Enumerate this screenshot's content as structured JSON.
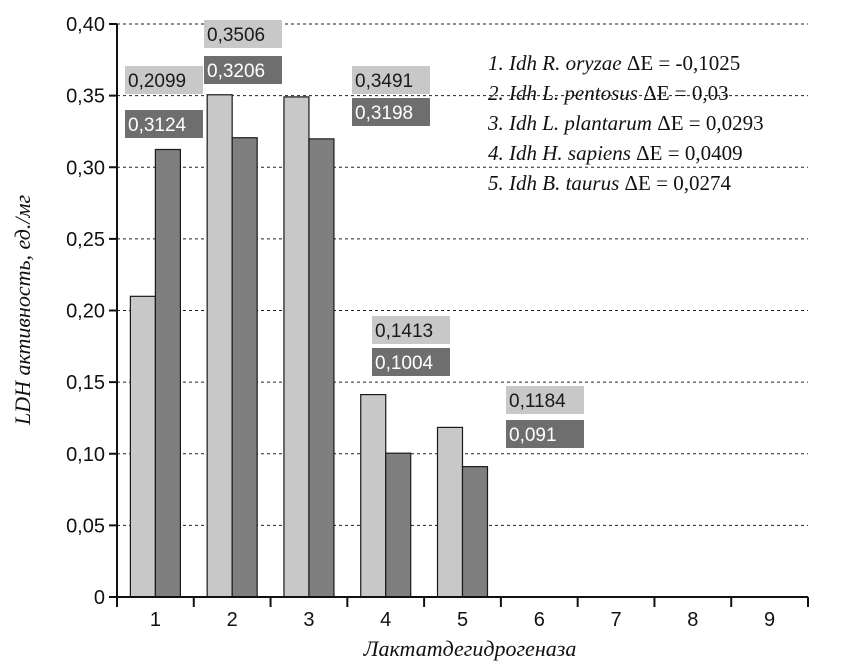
{
  "chart_data": {
    "type": "bar",
    "title": "",
    "xlabel": "Лактатдегидрогеназа",
    "ylabel": "LDH активность, ед./мг",
    "categories": [
      "1",
      "2",
      "3",
      "4",
      "5",
      "6",
      "7",
      "8",
      "9"
    ],
    "ylim": [
      0,
      0.4
    ],
    "yticks": [
      0,
      0.05,
      0.1,
      0.15,
      0.2,
      0.25,
      0.3,
      0.35,
      0.4
    ],
    "ytick_labels": [
      "0",
      "0,05",
      "0,10",
      "0,15",
      "0,20",
      "0,25",
      "0,30",
      "0,35",
      "0,40"
    ],
    "grid": "horizontal-dashed",
    "series": [
      {
        "values": [
          0.2099,
          0.3506,
          0.3491,
          0.1413,
          0.1184,
          null,
          null,
          null,
          null
        ],
        "value_labels": [
          "0,2099",
          "0,3506",
          "0,3491",
          "0,1413",
          "0,1184"
        ],
        "color": "#c8c8c8",
        "label_bg": "#c8c8c8"
      },
      {
        "values": [
          0.3124,
          0.3206,
          0.3198,
          0.1004,
          0.091,
          null,
          null,
          null,
          null
        ],
        "value_labels": [
          "0,3124",
          "0,3206",
          "0,3198",
          "0,1004",
          "0,091"
        ],
        "color": "#7f7f7f",
        "label_bg": "#6e6e6e"
      }
    ],
    "legend_placement": "top-right",
    "legend": [
      {
        "num": "1.",
        "genus": "Idh",
        "species": "R. oryzae",
        "delta": "ΔE = -0,1025"
      },
      {
        "num": "2.",
        "genus": "Idh",
        "species": "L. pentosus",
        "delta": "ΔE = 0,03"
      },
      {
        "num": "3.",
        "genus": "Idh",
        "species": "L. plantarum",
        "delta": "ΔE = 0,0293"
      },
      {
        "num": "4.",
        "genus": "Idh",
        "species": "H. sapiens",
        "delta": "ΔE = 0,0409"
      },
      {
        "num": "5.",
        "genus": "Idh",
        "species": "B. taurus",
        "delta": "ΔE = 0,0274"
      }
    ]
  }
}
